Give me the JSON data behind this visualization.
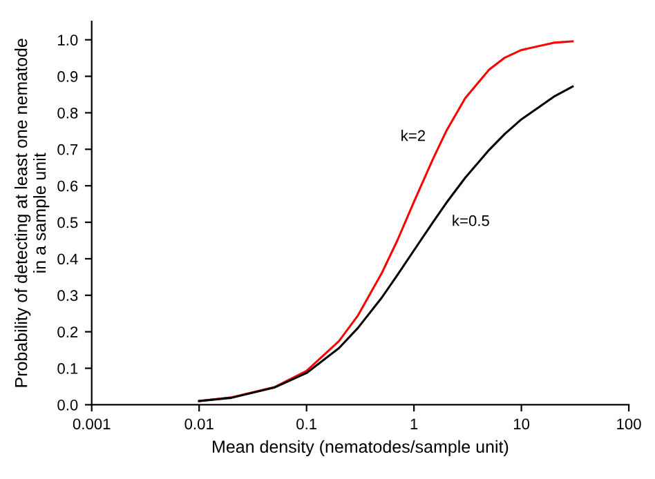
{
  "chart_data": {
    "type": "line",
    "xlabel": "Mean density (nematodes/sample unit)",
    "ylabel": "Probability of detecting at least one nematode\nin a sample unit",
    "x": [
      0.01,
      0.02,
      0.05,
      0.1,
      0.2,
      0.3,
      0.5,
      0.7,
      1,
      1.5,
      2,
      3,
      5,
      7,
      10,
      20,
      30
    ],
    "series": [
      {
        "name": "k=2",
        "color": "#ff0000",
        "values": [
          0.01,
          0.02,
          0.048,
          0.093,
          0.174,
          0.244,
          0.36,
          0.45,
          0.556,
          0.673,
          0.75,
          0.84,
          0.918,
          0.951,
          0.972,
          0.992,
          0.996
        ]
      },
      {
        "name": "k=0.5",
        "color": "#000000",
        "values": [
          0.01,
          0.019,
          0.047,
          0.087,
          0.155,
          0.21,
          0.293,
          0.355,
          0.423,
          0.5,
          0.553,
          0.622,
          0.698,
          0.742,
          0.782,
          0.844,
          0.872
        ]
      }
    ],
    "log": "x",
    "xlim": [
      0.001,
      100
    ],
    "ylim": [
      0,
      1.05
    ],
    "xticks": [
      {
        "value": 0.001,
        "label": "0.001"
      },
      {
        "value": 0.01,
        "label": "0.01"
      },
      {
        "value": 0.1,
        "label": "0.1"
      },
      {
        "value": 1,
        "label": "1"
      },
      {
        "value": 10,
        "label": "10"
      },
      {
        "value": 100,
        "label": "100"
      }
    ],
    "yticks": [
      {
        "value": 0,
        "label": "0.0"
      },
      {
        "value": 0.1,
        "label": "0.1"
      },
      {
        "value": 0.2,
        "label": "0.2"
      },
      {
        "value": 0.3,
        "label": "0.3"
      },
      {
        "value": 0.4,
        "label": "0.4"
      },
      {
        "value": 0.5,
        "label": "0.5"
      },
      {
        "value": 0.6,
        "label": "0.6"
      },
      {
        "value": 0.7,
        "label": "0.7"
      },
      {
        "value": 0.8,
        "label": "0.8"
      },
      {
        "value": 0.9,
        "label": "0.9"
      },
      {
        "value": 1.0,
        "label": "1.0"
      }
    ],
    "grid": false,
    "legend": false,
    "marker": "none",
    "line_style": "solid"
  }
}
